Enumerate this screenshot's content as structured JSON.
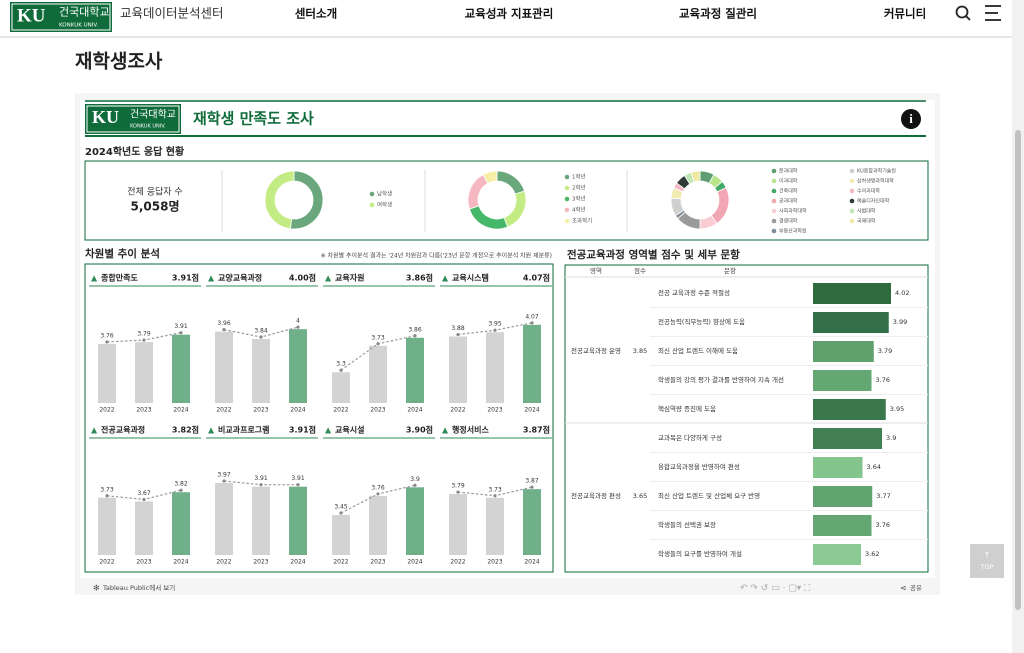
{
  "header": {
    "logo": {
      "mark": "KU",
      "name": "건국대학교",
      "eng": "KONKUK UNIV."
    },
    "site": "교육데이터분석센터",
    "nav": [
      "센터소개",
      "교육성과 지표관리",
      "교육과정 질관리",
      "커뮤니티"
    ]
  },
  "page_title": "재학생조사",
  "dashboard": {
    "logo": {
      "mark": "KU",
      "name": "건국대학교",
      "eng": "KONKUK UNIV."
    },
    "title": "재학생 만족도 조사",
    "response": {
      "title": "2024학년도 응답 현황",
      "total_label": "전체 응답자 수",
      "total": "5,058명",
      "donuts": [
        {
          "type": "pie",
          "categories": [
            "남학생",
            "여학생"
          ],
          "values": [
            52,
            48
          ],
          "colors": [
            "#6aa77c",
            "#c4ec84"
          ]
        },
        {
          "type": "pie",
          "categories": [
            "1학년",
            "2학년",
            "3학년",
            "4학년",
            "초과학기"
          ],
          "values": [
            20,
            24,
            26,
            22,
            8
          ],
          "colors": [
            "#6aa77c",
            "#c4ec84",
            "#47b86a",
            "#f5b8c0",
            "#f7efa8"
          ]
        },
        {
          "type": "pie",
          "categories": [
            "문과대학",
            "이과대학",
            "건축대학",
            "공과대학",
            "사회과학대학",
            "경영대학",
            "부동산과학원",
            "KU융합과학기술원",
            "상허생명과학대학",
            "수의과대학",
            "예술디자인대학",
            "사범대학",
            "국제대학"
          ],
          "values": [
            8,
            6,
            4,
            22,
            10,
            14,
            2,
            10,
            6,
            3,
            6,
            4,
            5
          ],
          "colors": [
            "#5f9e73",
            "#b9e48a",
            "#43a868",
            "#f2a6b3",
            "#f9cdd3",
            "#9a9a9a",
            "#7e8c97",
            "#cfcfcf",
            "#f3ecb2",
            "#f6b9c3",
            "#2f3b35",
            "#bde8b3",
            "#efe8a0"
          ]
        }
      ]
    },
    "trend": {
      "title": "차원별 추이 분석",
      "note": "※ 차원별 추이분석 결과는 '24년 차원감과 다름('23년 문항 개정으로 추이분석 차원 재분류)",
      "years": [
        "2022",
        "2023",
        "2024"
      ],
      "ylim": [
        2.8,
        4.1
      ],
      "panels": [
        {
          "name": "종합만족도",
          "score": "3.91점",
          "values": [
            3.76,
            3.79,
            3.91
          ]
        },
        {
          "name": "교양교육과정",
          "score": "4.00점",
          "values": [
            3.96,
            3.84,
            4.0
          ]
        },
        {
          "name": "교육자원",
          "score": "3.86점",
          "values": [
            3.3,
            3.73,
            3.86
          ]
        },
        {
          "name": "교육시스템",
          "score": "4.07점",
          "values": [
            3.88,
            3.95,
            4.07
          ]
        },
        {
          "name": "전공교육과정",
          "score": "3.82점",
          "values": [
            3.73,
            3.67,
            3.82
          ]
        },
        {
          "name": "비교과프로그램",
          "score": "3.91점",
          "values": [
            3.97,
            3.91,
            3.91
          ]
        },
        {
          "name": "교육시설",
          "score": "3.90점",
          "values": [
            3.45,
            3.76,
            3.9
          ]
        },
        {
          "name": "행정서비스",
          "score": "3.87점",
          "values": [
            3.79,
            3.73,
            3.87
          ]
        }
      ]
    },
    "items": {
      "title": "전공교육과정 영역별 점수 및 세부 문항",
      "headers": [
        "영역",
        "점수",
        "문항"
      ],
      "xlim": [
        2.98,
        4.1
      ],
      "groups": [
        {
          "name": "전공교육과정 운영",
          "score": "3.85",
          "items": [
            {
              "text": "전공 교육과정 수준 적절성",
              "value": 4.02,
              "color": "#2f6b3f"
            },
            {
              "text": "전공능력(직무능력) 향상에 도움",
              "value": 3.99,
              "color": "#33704a"
            },
            {
              "text": "최신 산업 트렌드 이해에 도움",
              "value": 3.79,
              "color": "#5fa06c"
            },
            {
              "text": "학생들의 강의 평가 결과를 반영하여 지속 개선",
              "value": 3.76,
              "color": "#65a772"
            },
            {
              "text": "핵심역량 증진에 도움",
              "value": 3.95,
              "color": "#3a774a"
            }
          ]
        },
        {
          "name": "전공교육과정 편성",
          "score": "3.65",
          "items": [
            {
              "text": "교과목은 다양하게 구성",
              "value": 3.9,
              "color": "#427f52"
            },
            {
              "text": "융합교육과정을 반영하여 편성",
              "value": 3.64,
              "color": "#84c48d"
            },
            {
              "text": "최신 산업 트렌드 및 산업체 요구 반영",
              "value": 3.77,
              "color": "#62a470"
            },
            {
              "text": "학생들의 선택권 보장",
              "value": 3.76,
              "color": "#65a772"
            },
            {
              "text": "학생들의 요구를 반영하여 개설",
              "value": 3.62,
              "color": "#8bc994"
            }
          ]
        }
      ]
    },
    "footer": {
      "tableau": "Tableau Public에서 보기",
      "share": "공유"
    }
  },
  "top": "TOP"
}
